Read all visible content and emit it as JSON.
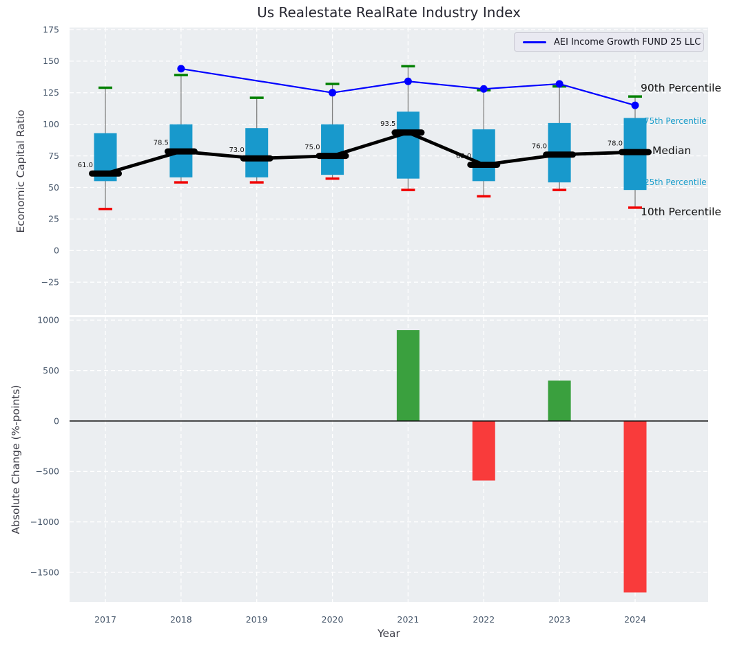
{
  "title": "Us Realestate RealRate Industry Index",
  "legend": {
    "label": "AEI Income Growth FUND 25 LLC",
    "line_color": "#0000ff"
  },
  "annotations": {
    "p90": "90th Percentile",
    "p75": "75th Percentile",
    "median": "Median",
    "p25": "25th Percentile",
    "p10": "10th Percentile"
  },
  "colors": {
    "figure_bg": "#ffffff",
    "axes_bg": "#ebeef1",
    "grid": "#ffffff",
    "tick_text": "#46566a",
    "box_fill": "#1899cc",
    "whisker": "#7f7f7f",
    "cap_90th": "#008000",
    "cap_10th": "#f10000",
    "median_line": "#000000",
    "fund_line": "#0000ff",
    "bar_positive": "#3aa03e",
    "bar_negative": "#f93b3b",
    "annotation_small": "#1b9ecb"
  },
  "chart_data": [
    {
      "type": "box",
      "title": "Us Realestate RealRate Industry Index",
      "ylabel": "Economic Capital Ratio",
      "categories": [
        "2017",
        "2018",
        "2019",
        "2020",
        "2021",
        "2022",
        "2023",
        "2024"
      ],
      "ylim": [
        -50,
        177
      ],
      "grid": true,
      "legend_position": "upper right",
      "yticks": {
        "values": [
          175,
          150,
          125,
          100,
          75,
          50,
          25,
          0,
          -25
        ],
        "labels": [
          "175",
          "150",
          "125",
          "100",
          "75",
          "50",
          "25",
          "0",
          "−25"
        ]
      },
      "series": {
        "p90": [
          129,
          139,
          121,
          132,
          146,
          127,
          130,
          122
        ],
        "p75": [
          93,
          100,
          97,
          100,
          110,
          96,
          101,
          105
        ],
        "median": [
          61.0,
          78.5,
          73.0,
          75.0,
          93.5,
          68.0,
          76.0,
          78.0
        ],
        "p25": [
          55,
          58,
          58,
          60,
          57,
          55,
          54,
          48
        ],
        "p10": [
          33,
          54,
          54,
          57,
          48,
          43,
          48,
          34
        ],
        "fund": {
          "name": "AEI Income Growth FUND 25 LLC",
          "values": [
            null,
            144,
            null,
            125,
            134,
            128,
            132,
            115
          ]
        }
      },
      "median_labels": [
        "61.0",
        "78.5",
        "73.0",
        "75.0",
        "93.5",
        "68.0",
        "76.0",
        "78.0"
      ]
    },
    {
      "type": "bar",
      "ylabel": "Absolute Change (%-points)",
      "xlabel": "Year",
      "categories": [
        "2017",
        "2018",
        "2019",
        "2020",
        "2021",
        "2022",
        "2023",
        "2024"
      ],
      "values": [
        null,
        null,
        null,
        null,
        900,
        -590,
        400,
        -1700
      ],
      "ylim": [
        -1800,
        1030
      ],
      "grid": true,
      "zero_line": true,
      "yticks": {
        "values": [
          1000,
          500,
          0,
          -500,
          -1000,
          -1500
        ],
        "labels": [
          "1000",
          "500",
          "0",
          "−500",
          "−1000",
          "−1500"
        ]
      }
    }
  ]
}
